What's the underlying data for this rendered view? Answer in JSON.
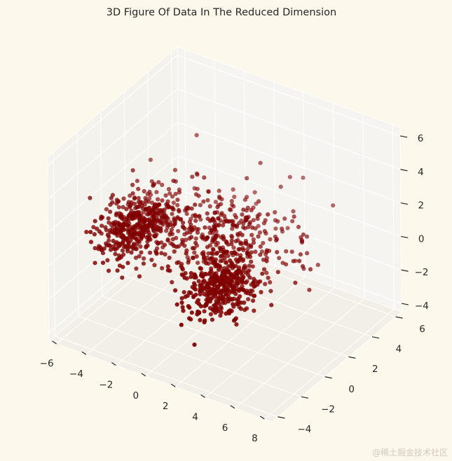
{
  "chart_data": {
    "type": "scatter",
    "projection": "3d",
    "title": "3D Figure Of Data In The Reduced Dimension",
    "xlabel": "",
    "ylabel": "",
    "zlabel": "",
    "x_ticks": [
      "−6",
      "−4",
      "−2",
      "0",
      "2",
      "4",
      "6",
      "8"
    ],
    "y_ticks": [
      "−4",
      "−2",
      "0",
      "2",
      "4",
      "6"
    ],
    "z_ticks": [
      "−4",
      "−2",
      "0",
      "2",
      "4",
      "6"
    ],
    "xlim": [
      -6.5,
      8.5
    ],
    "ylim": [
      -4.5,
      6.5
    ],
    "zlim": [
      -4.5,
      6.5
    ],
    "grid": true,
    "marker_color": "#800000",
    "background_color": "#fdf8ec",
    "pane_color": "#f2f0ea",
    "clusters": [
      {
        "center": [
          -4.5,
          0.5,
          0.0
        ],
        "count": 450,
        "spread": [
          0.9,
          1.1,
          0.7
        ]
      },
      {
        "center": [
          2.8,
          -1.5,
          0.0
        ],
        "count": 400,
        "spread": [
          1.1,
          1.0,
          0.7
        ]
      },
      {
        "center": [
          0.5,
          1.5,
          0.5
        ],
        "count": 420,
        "spread": [
          2.4,
          1.3,
          1.0
        ]
      }
    ],
    "outliers": [
      [
        -3.4,
        4.2,
        3.6
      ],
      [
        -2.6,
        3.0,
        1.4
      ],
      [
        -4.8,
        3.0,
        0.9
      ],
      [
        2.4,
        4.8,
        2.6
      ],
      [
        4.2,
        -4.6,
        1.2
      ],
      [
        6.2,
        -1.6,
        0.0
      ]
    ]
  },
  "watermark": "@稀土掘金技术社区"
}
